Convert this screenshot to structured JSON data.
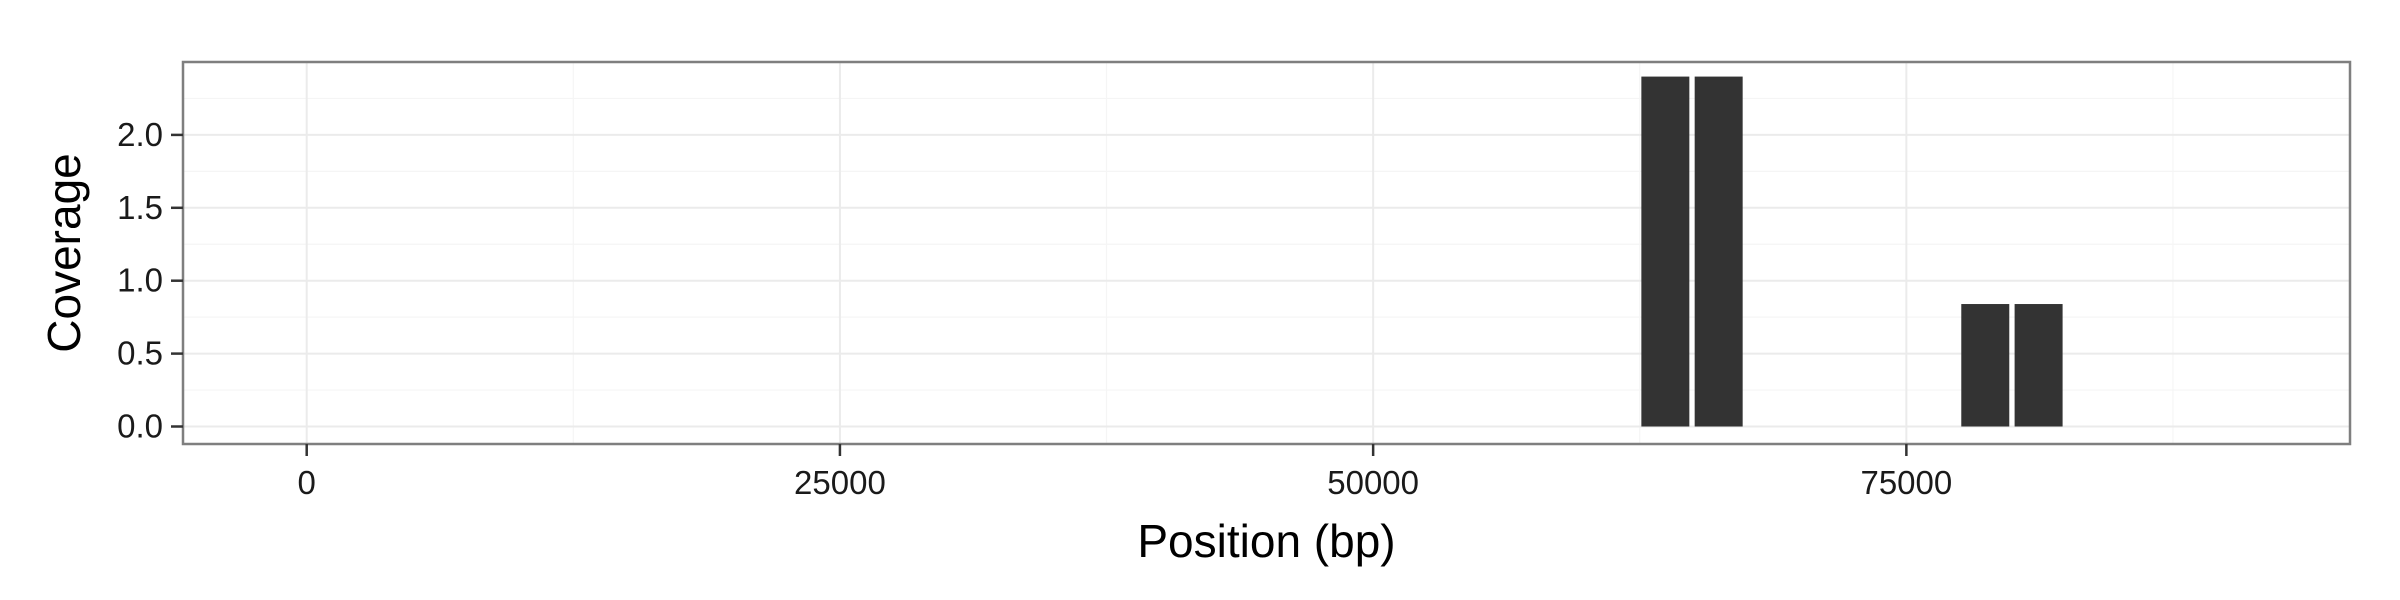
{
  "chart_data": {
    "type": "bar",
    "title": "",
    "xlabel": "Position (bp)",
    "ylabel": "Coverage",
    "x_ticks": [
      0,
      25000,
      50000,
      75000
    ],
    "y_ticks": [
      0.0,
      0.5,
      1.0,
      1.5,
      2.0
    ],
    "y_tick_labels": [
      "0.0",
      "0.5",
      "1.0",
      "1.5",
      "2.0"
    ],
    "xlim": [
      -5800,
      95800
    ],
    "ylim": [
      -0.12,
      2.5
    ],
    "bar_width": 2250,
    "grid": true,
    "legend": "none",
    "series": [
      {
        "x": [
          63700,
          66200,
          78700,
          81200
        ],
        "values": [
          2.4,
          2.4,
          0.84,
          0.84
        ]
      }
    ],
    "colors": {
      "bar": "#333333",
      "panel_border": "#7f7f7f",
      "grid_major": "#ebebeb",
      "grid_minor": "#f5f5f5",
      "tick_mark": "#333333"
    }
  }
}
